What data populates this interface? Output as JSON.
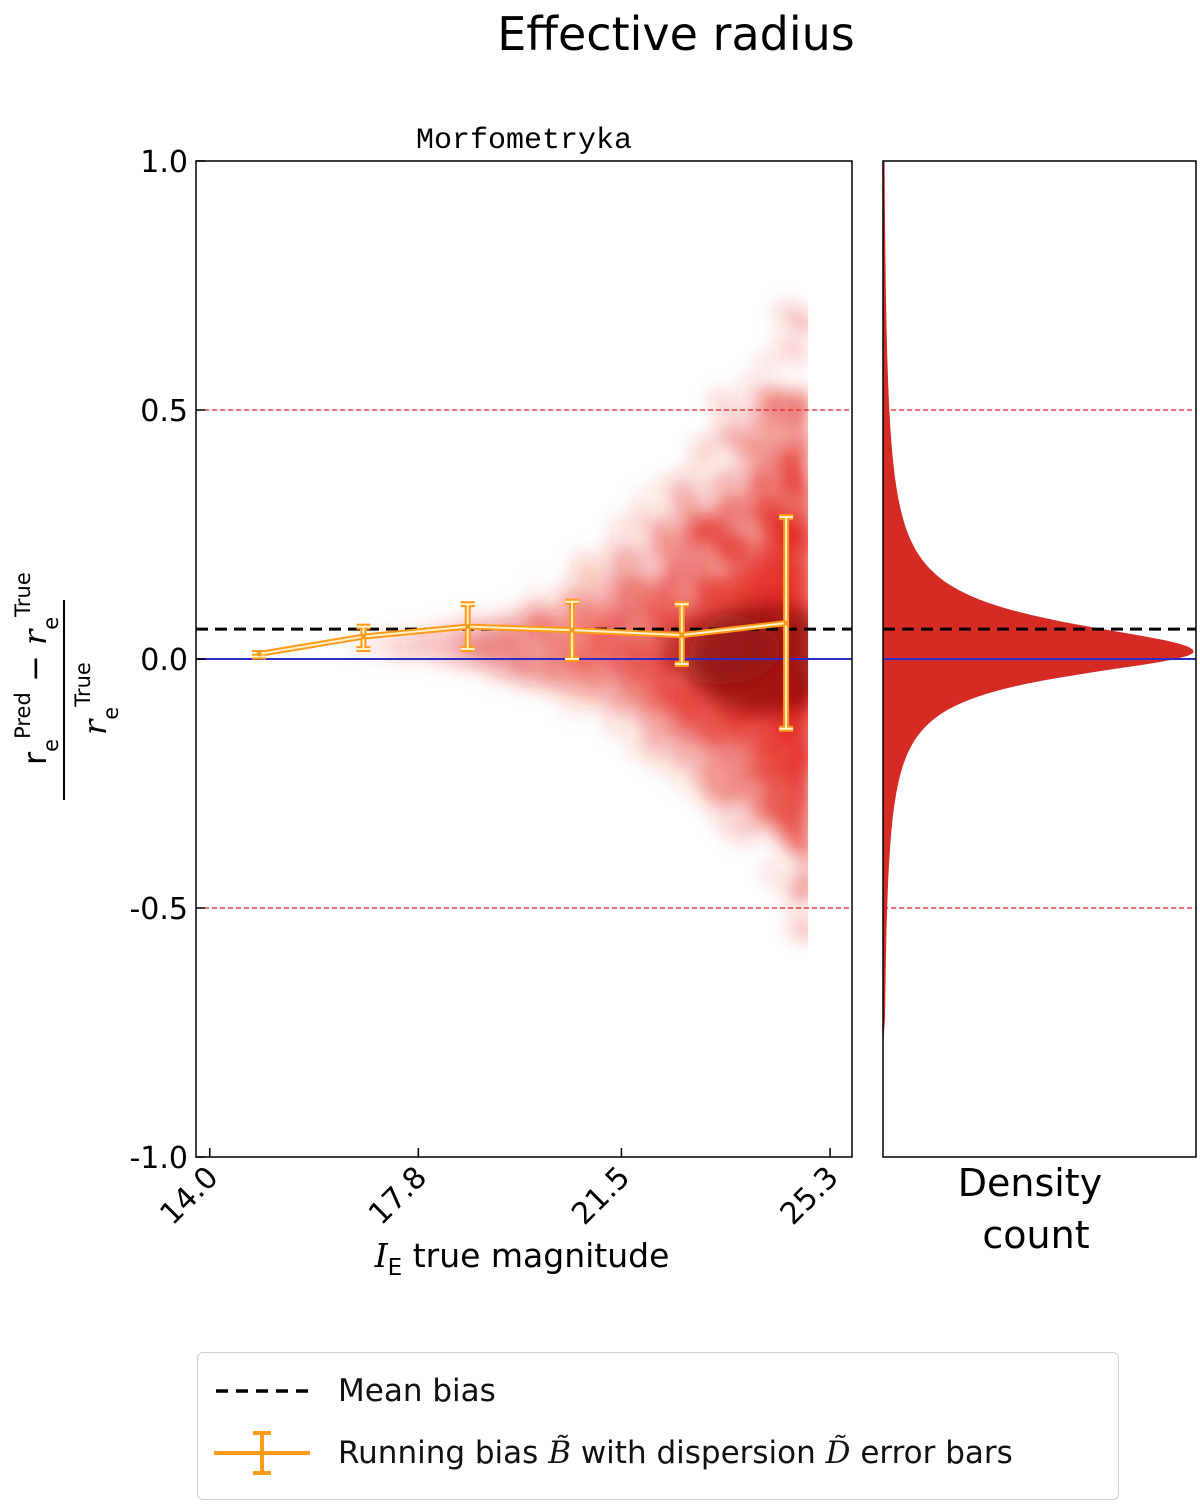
{
  "figure_title": "Effective radius",
  "panel_title": "Morfometryka",
  "colors": {
    "scatter": "#e3261e",
    "histogram": "#d62a25",
    "running_bias": "#ff9a1a",
    "mean_bias": "#000000",
    "zero_line": "#2b2bc8",
    "threshold_lines": "#e02020"
  },
  "chart_data": {
    "type": "scatter",
    "xlabel_symbol": "I",
    "xlabel_sub": "E",
    "xlabel_rest": "true magnitude",
    "ylabel": "(r_e^Pred − r_e^True) / r_e^True",
    "xlim": [
      13.75,
      25.7
    ],
    "ylim": [
      -1.0,
      1.0
    ],
    "xticks": [
      "14.0",
      "17.8",
      "21.5",
      "25.3"
    ],
    "yticks": [
      "1.0",
      "0.5",
      "0.0",
      "-0.5",
      "-1.0"
    ],
    "threshold_lines_y": [
      0.5,
      -0.5
    ],
    "zero_line_y": 0.0,
    "mean_bias": 0.06,
    "running_bias": {
      "x": [
        14.9,
        16.8,
        18.7,
        20.6,
        22.6,
        24.5
      ],
      "bias": [
        0.01,
        0.045,
        0.065,
        0.058,
        0.048,
        0.072
      ],
      "err_low": [
        0.005,
        0.02,
        0.02,
        0.0,
        -0.01,
        -0.14
      ],
      "err_high": [
        0.012,
        0.065,
        0.11,
        0.115,
        0.11,
        0.285
      ]
    },
    "histogram_xlabel": "Density\ncount",
    "grid": false
  },
  "legend": {
    "mean_bias_label": "Mean bias",
    "running_bias_prefix": "Running bias",
    "running_bias_b": "B̃",
    "running_bias_mid": "with dispersion",
    "running_bias_d": "D̃",
    "running_bias_suffix": "error bars"
  }
}
